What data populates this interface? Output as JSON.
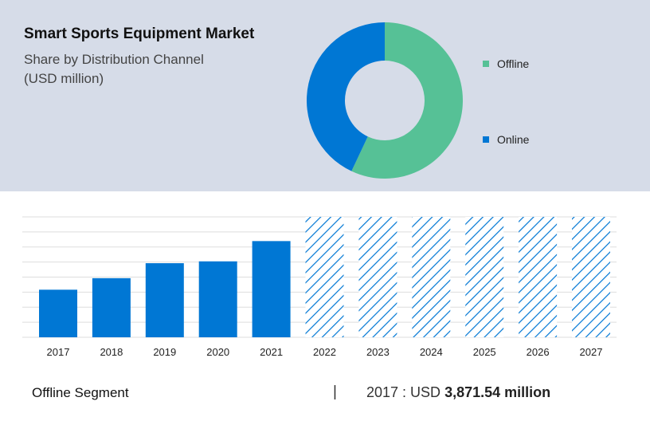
{
  "header": {
    "title": "Smart Sports Equipment Market",
    "subtitle_line1": "Share by Distribution Channel",
    "subtitle_line2": "(USD million)"
  },
  "colors": {
    "offline": "#56c196",
    "online": "#0077d4",
    "bar": "#0077d4",
    "band": "#d6dce8",
    "grid": "#dddddd"
  },
  "chart_data": [
    {
      "type": "pie",
      "title": "Share by Distribution Channel",
      "categories": [
        "Offline",
        "Online"
      ],
      "values": [
        57,
        43
      ],
      "legend": "right"
    },
    {
      "type": "bar",
      "categories": [
        "2017",
        "2018",
        "2019",
        "2020",
        "2021",
        "2022",
        "2023",
        "2024",
        "2025",
        "2026",
        "2027"
      ],
      "values": [
        3871.54,
        4810,
        6030,
        6180,
        7830,
        null,
        null,
        null,
        null,
        null,
        null
      ],
      "forecast_categories": [
        "2022",
        "2023",
        "2024",
        "2025",
        "2026",
        "2027"
      ],
      "ylim": [
        0,
        9800
      ],
      "grid": true
    }
  ],
  "footer": {
    "segment_label": "Offline Segment",
    "separator": "|",
    "year_prefix": "2017 : USD",
    "value_text": "3,871.54 million"
  }
}
